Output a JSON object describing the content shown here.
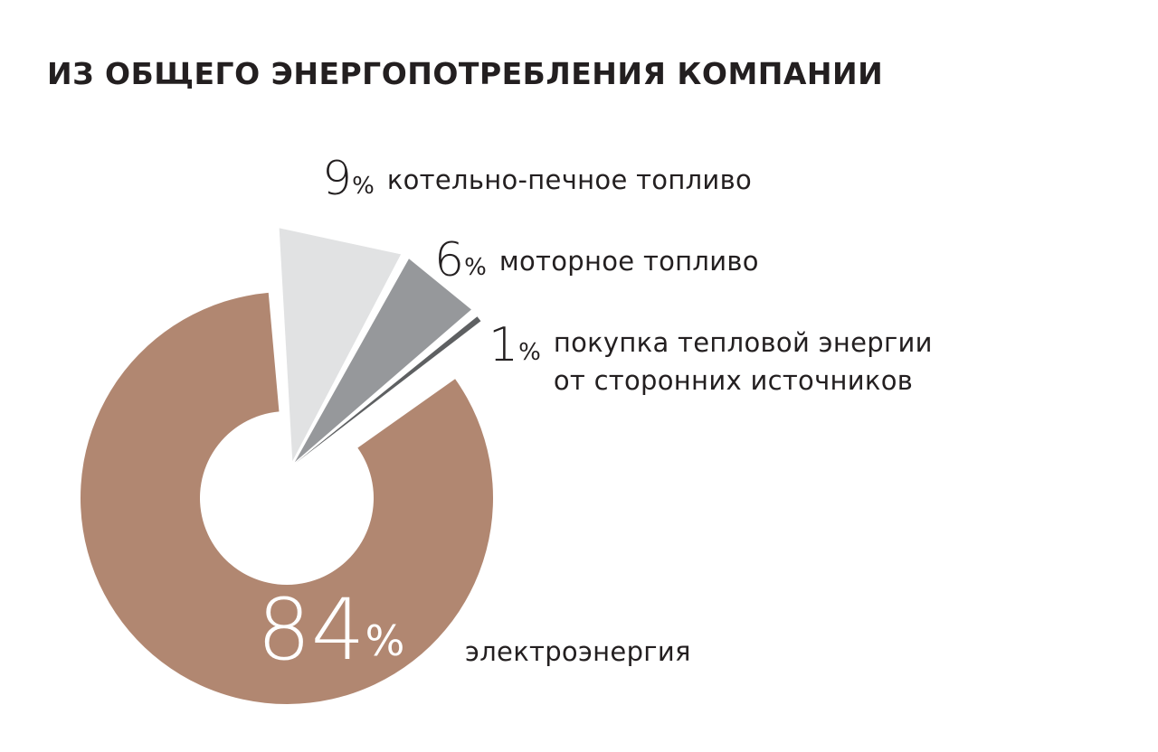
{
  "chart_data": {
    "type": "pie",
    "title": "ИЗ ОБЩЕГО ЭНЕРГОПОТРЕБЛЕНИЯ КОМПАНИИ",
    "unit": "%",
    "slices": [
      {
        "value": 84,
        "label": "электроэнергия",
        "color": "#b18771",
        "exploded": false
      },
      {
        "value": 9,
        "label": "котельно-печное топливо",
        "color": "#e1e2e3",
        "exploded": true
      },
      {
        "value": 6,
        "label": "моторное топливо",
        "color": "#96989b",
        "exploded": true
      },
      {
        "value": 1,
        "label": "покупка тепловой энергии\nот сторонних источников",
        "color": "#5e6062",
        "exploded": true
      }
    ]
  }
}
